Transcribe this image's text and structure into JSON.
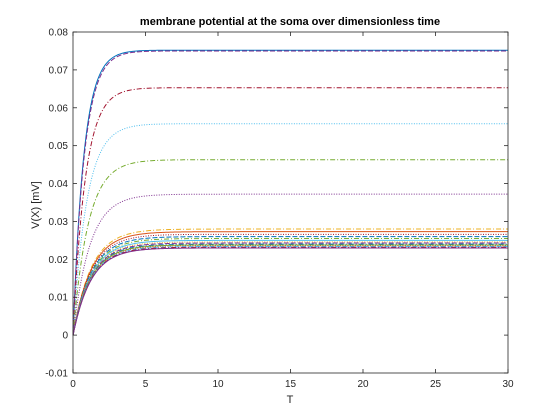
{
  "chart_data": {
    "type": "line",
    "title": "membrane potential at the soma over dimensionless time",
    "xlabel": "T",
    "ylabel": "V(X) [mV]",
    "xlim": [
      0,
      30
    ],
    "ylim": [
      -0.01,
      0.08
    ],
    "x_ticks": [
      "0",
      "5",
      "10",
      "15",
      "20",
      "25",
      "30"
    ],
    "y_ticks": [
      "-0.01",
      "0",
      "0.01",
      "0.02",
      "0.03",
      "0.04",
      "0.05",
      "0.06",
      "0.07",
      "0.08"
    ],
    "grid": false,
    "legend": "none",
    "series": [
      {
        "asymptote": 0.0752,
        "tau": 0.75,
        "color": "#0072BD",
        "dash": "solid"
      },
      {
        "asymptote": 0.075,
        "tau": 0.78,
        "color": "#7E2F8E",
        "dash": "dash"
      },
      {
        "asymptote": 0.0653,
        "tau": 0.85,
        "color": "#A2142F",
        "dash": "dashdot"
      },
      {
        "asymptote": 0.0558,
        "tau": 0.95,
        "color": "#4DBEEE",
        "dash": "dot"
      },
      {
        "asymptote": 0.0463,
        "tau": 1.05,
        "color": "#77AC30",
        "dash": "dashdot"
      },
      {
        "asymptote": 0.0372,
        "tau": 1.15,
        "color": "#7E2F8E",
        "dash": "dot"
      },
      {
        "asymptote": 0.028,
        "tau": 1.25,
        "color": "#EDB120",
        "dash": "dashdot"
      },
      {
        "asymptote": 0.0273,
        "tau": 1.25,
        "color": "#D95319",
        "dash": "solid"
      },
      {
        "asymptote": 0.0266,
        "tau": 1.25,
        "color": "#A2142F",
        "dash": "dot"
      },
      {
        "asymptote": 0.026,
        "tau": 1.25,
        "color": "#0072BD",
        "dash": "dash"
      },
      {
        "asymptote": 0.0255,
        "tau": 1.25,
        "color": "#77AC30",
        "dash": "dashdot"
      },
      {
        "asymptote": 0.025,
        "tau": 1.25,
        "color": "#4DBEEE",
        "dash": "solid"
      },
      {
        "asymptote": 0.0246,
        "tau": 1.25,
        "color": "#EDB120",
        "dash": "dot"
      },
      {
        "asymptote": 0.0243,
        "tau": 1.25,
        "color": "#7E2F8E",
        "dash": "dash"
      },
      {
        "asymptote": 0.024,
        "tau": 1.25,
        "color": "#0072BD",
        "dash": "dashdot"
      },
      {
        "asymptote": 0.0238,
        "tau": 1.25,
        "color": "#77AC30",
        "dash": "solid"
      },
      {
        "asymptote": 0.0236,
        "tau": 1.25,
        "color": "#D95319",
        "dash": "dot"
      },
      {
        "asymptote": 0.0234,
        "tau": 1.25,
        "color": "#4DBEEE",
        "dash": "dash"
      },
      {
        "asymptote": 0.0232,
        "tau": 1.25,
        "color": "#A2142F",
        "dash": "dashdot"
      },
      {
        "asymptote": 0.023,
        "tau": 1.25,
        "color": "#7E2F8E",
        "dash": "solid"
      }
    ]
  }
}
